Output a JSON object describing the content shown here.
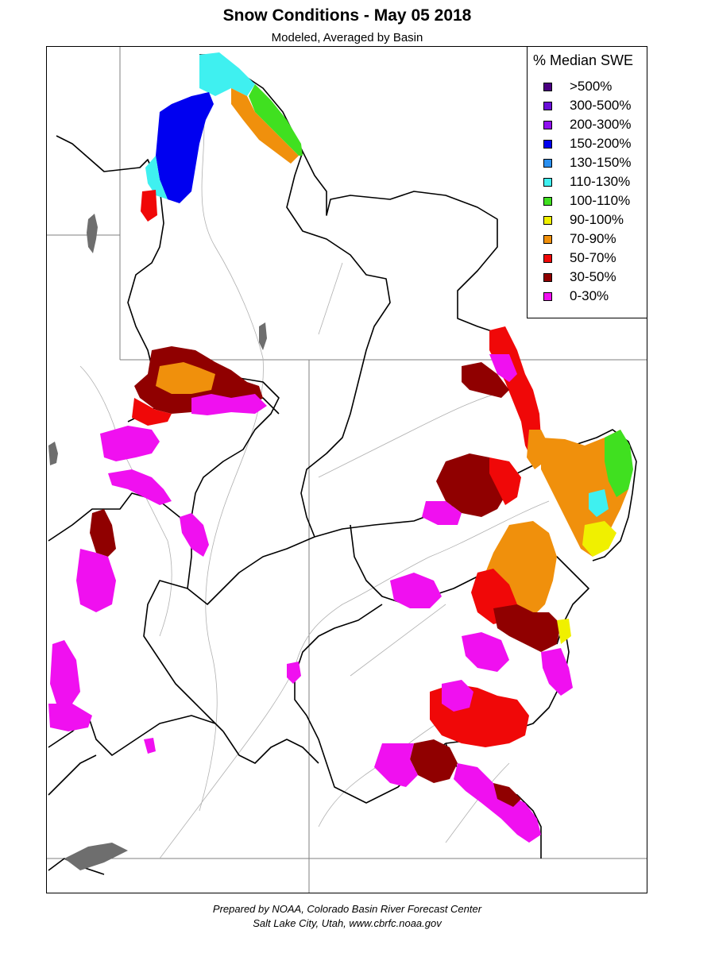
{
  "map": {
    "title": "Snow Conditions - May 05 2018",
    "subtitle": "Modeled, Averaged by Basin"
  },
  "legend": {
    "title": "% Median SWE",
    "items": [
      {
        "label": ">500%",
        "color": "#4b0082"
      },
      {
        "label": "300-500%",
        "color": "#6a0fd8"
      },
      {
        "label": "200-300%",
        "color": "#9010f0"
      },
      {
        "label": "150-200%",
        "color": "#0000f0"
      },
      {
        "label": "130-150%",
        "color": "#2a8ff0"
      },
      {
        "label": "110-130%",
        "color": "#3ff0f0"
      },
      {
        "label": "100-110%",
        "color": "#40e020"
      },
      {
        "label": "90-100%",
        "color": "#f0f000"
      },
      {
        "label": "70-90%",
        "color": "#f0900c"
      },
      {
        "label": "50-70%",
        "color": "#f00808"
      },
      {
        "label": "30-50%",
        "color": "#900000"
      },
      {
        "label": "0-30%",
        "color": "#f010f0"
      }
    ]
  },
  "colors": {
    "basin_border": "#000000",
    "state_border": "#7f7f7f",
    "river": "#b0b0b0",
    "lake": "#6e6e6e"
  },
  "credits": {
    "line1": "Prepared by NOAA, Colorado Basin River Forecast Center",
    "line2": "Salt Lake City, Utah, www.cbrfc.noaa.gov"
  }
}
